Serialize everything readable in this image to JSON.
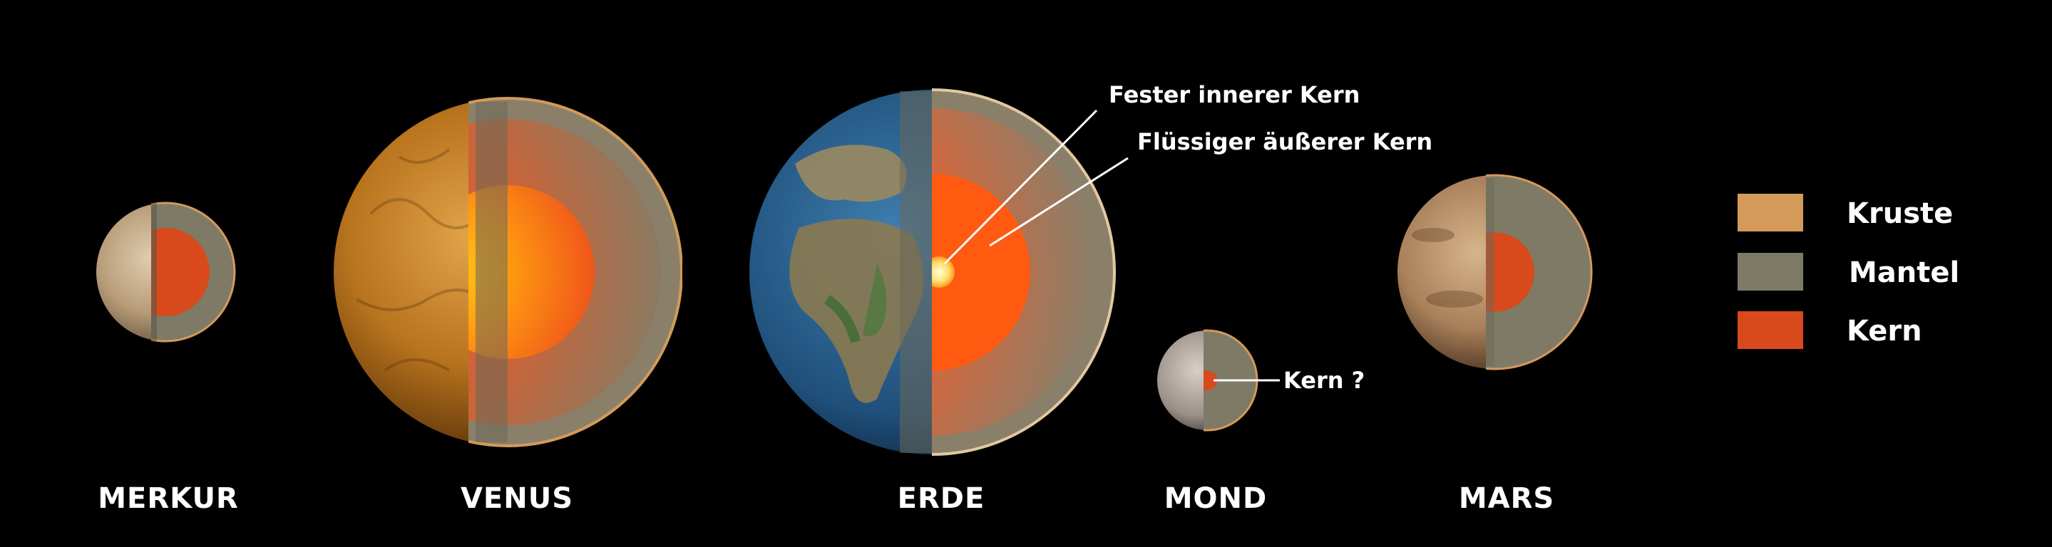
{
  "planets": [
    {
      "name": "MERKUR"
    },
    {
      "name": "VENUS"
    },
    {
      "name": "ERDE"
    },
    {
      "name": "MOND"
    },
    {
      "name": "MARS"
    }
  ],
  "annotations": {
    "inner_core": "Fester innerer Kern",
    "outer_core": "Flüssiger äußerer Kern",
    "moon_core": "Kern ?"
  },
  "legend": [
    {
      "label": "Kruste",
      "color": "#d39a5a"
    },
    {
      "label": "Mantel",
      "color": "#7e7a66"
    },
    {
      "label": "Kern",
      "color": "#d84a1c"
    }
  ],
  "colors": {
    "background": "#000000",
    "crust": "#d39a5a",
    "mantle": "#7e7a66",
    "core": "#d84a1c"
  }
}
